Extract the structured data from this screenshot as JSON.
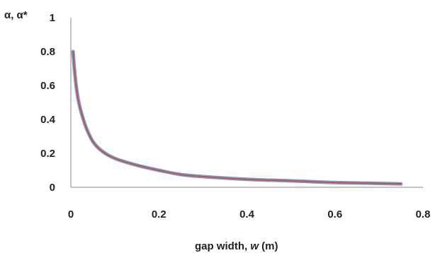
{
  "chart_data": {
    "type": "line",
    "title": "",
    "ylabel": "α, α*",
    "xlabel_parts": [
      "gap width, ",
      "w",
      " (m)"
    ],
    "xlim": [
      0,
      0.8
    ],
    "ylim": [
      0,
      1
    ],
    "x_ticks": [
      0,
      0.2,
      0.4,
      0.6,
      0.8
    ],
    "x_tick_labels": [
      "0",
      "0.2",
      "0.4",
      "0.6",
      "0.8"
    ],
    "y_ticks": [
      0,
      0.2,
      0.4,
      0.6,
      0.8,
      1
    ],
    "y_tick_labels": [
      "0",
      "0.2",
      "0.4",
      "0.6",
      "0.8",
      "1"
    ],
    "grid": false,
    "legend": "none",
    "series": [
      {
        "color": "#7f9bc2",
        "x": [
          0.005,
          0.008,
          0.012,
          0.018,
          0.025,
          0.035,
          0.05,
          0.07,
          0.1,
          0.15,
          0.2,
          0.25,
          0.3,
          0.4,
          0.5,
          0.6,
          0.7,
          0.75
        ],
        "y": [
          0.8,
          0.7,
          0.6,
          0.5,
          0.43,
          0.35,
          0.27,
          0.215,
          0.17,
          0.13,
          0.1,
          0.075,
          0.063,
          0.047,
          0.038,
          0.028,
          0.023,
          0.02
        ]
      },
      {
        "color": "#c0504d",
        "x": [
          0.005,
          0.008,
          0.012,
          0.018,
          0.025,
          0.035,
          0.05,
          0.07,
          0.1,
          0.15,
          0.2,
          0.25,
          0.3,
          0.4,
          0.5,
          0.6,
          0.7,
          0.75
        ],
        "y": [
          0.8,
          0.7,
          0.6,
          0.5,
          0.43,
          0.35,
          0.27,
          0.215,
          0.17,
          0.13,
          0.1,
          0.075,
          0.063,
          0.047,
          0.038,
          0.028,
          0.023,
          0.02
        ]
      }
    ]
  }
}
